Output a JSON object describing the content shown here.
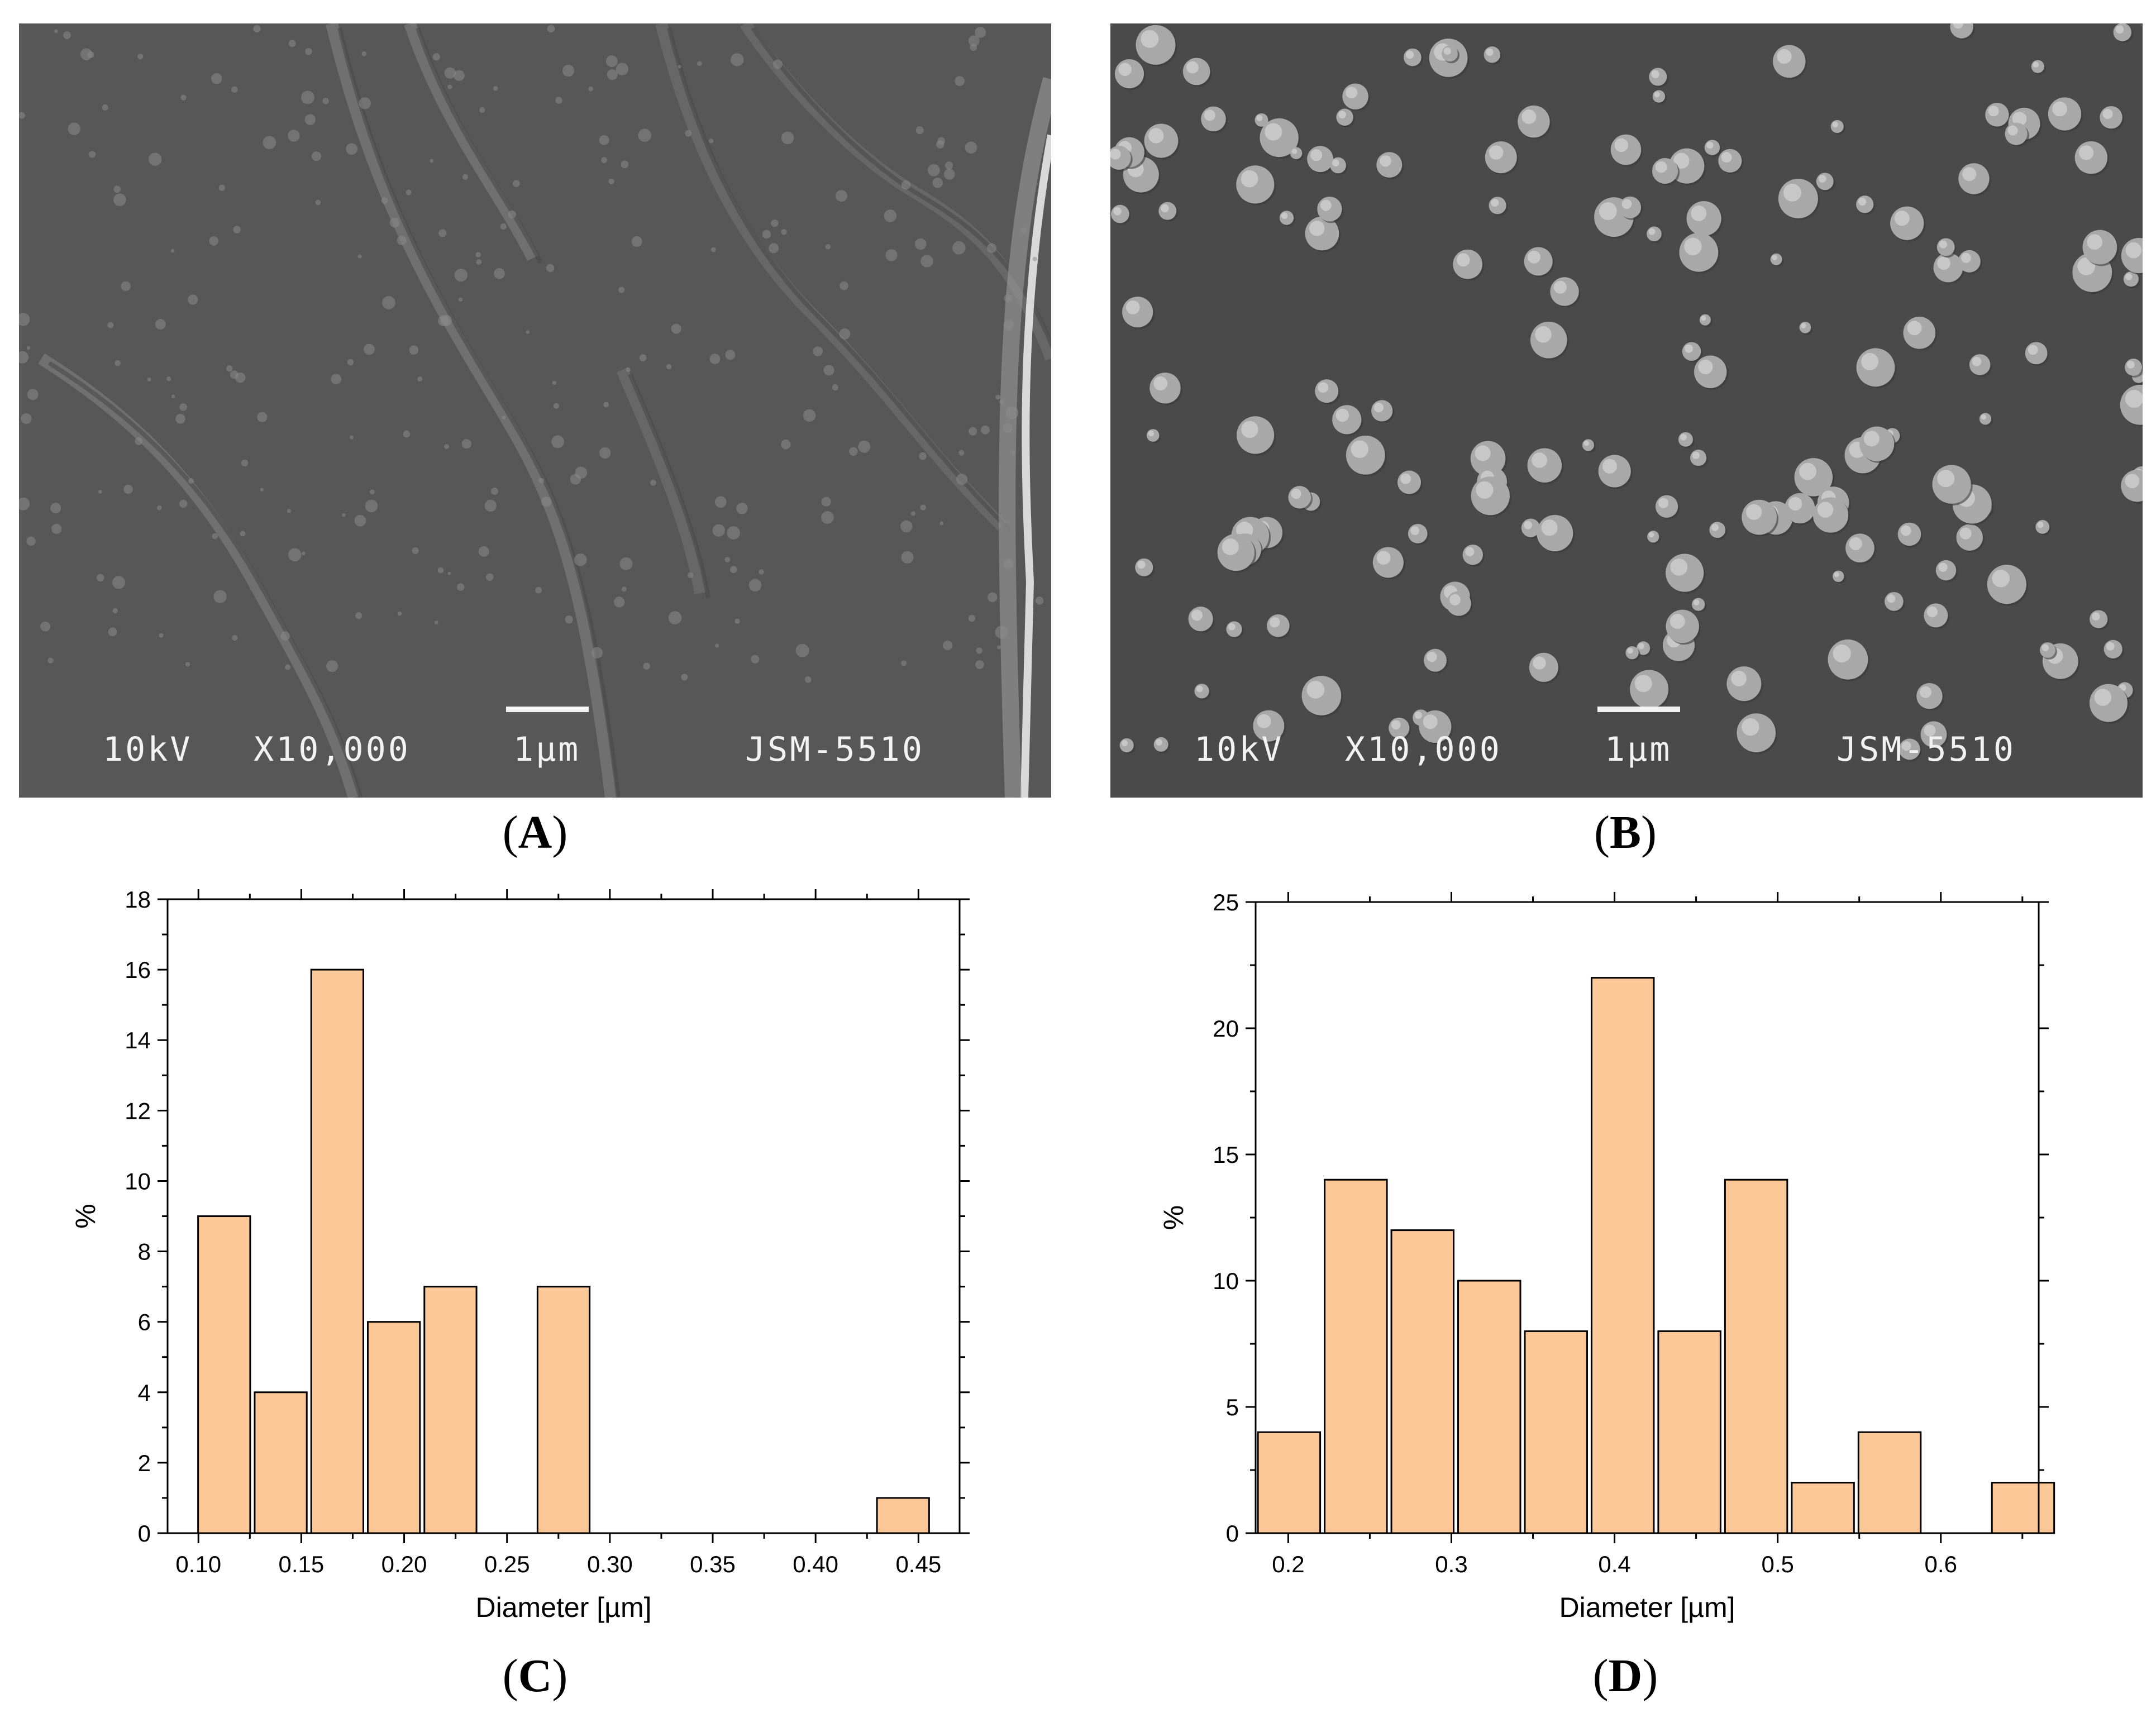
{
  "panels": {
    "A": {
      "caption": "A",
      "sem": {
        "voltage": "10kV",
        "magnification": "X10,000",
        "scale": "1µm",
        "instrument": "JSM-5510"
      },
      "style": "fracture-surface"
    },
    "B": {
      "caption": "B",
      "sem": {
        "voltage": "10kV",
        "magnification": "X10,000",
        "scale": "1µm",
        "instrument": "JSM-5510"
      },
      "style": "particles"
    },
    "C": {
      "caption": "C"
    },
    "D": {
      "caption": "D"
    }
  },
  "colors": {
    "bar_fill": "#fdc898",
    "bar_stroke": "#000000",
    "sem_bg_A": "#575757",
    "sem_bg_B": "#4a4a4a"
  },
  "chart_data": [
    {
      "id": "C",
      "type": "bar",
      "xlabel": "Diameter [µm]",
      "ylabel": "%",
      "xlim": [
        0.085,
        0.47
      ],
      "ylim": [
        0,
        18
      ],
      "xticks": [
        "0.10",
        "0.15",
        "0.20",
        "0.25",
        "0.30",
        "0.35",
        "0.40",
        "0.45"
      ],
      "xtick_values": [
        0.1,
        0.15,
        0.2,
        0.25,
        0.3,
        0.35,
        0.4,
        0.45
      ],
      "yticks": [
        "0",
        "2",
        "4",
        "6",
        "8",
        "10",
        "12",
        "14",
        "16",
        "18"
      ],
      "ytick_values": [
        0,
        2,
        4,
        6,
        8,
        10,
        12,
        14,
        16,
        18
      ],
      "bin_width": 0.0275,
      "bars": [
        {
          "x": 0.1125,
          "value": 9
        },
        {
          "x": 0.14,
          "value": 4
        },
        {
          "x": 0.1675,
          "value": 16
        },
        {
          "x": 0.195,
          "value": 6
        },
        {
          "x": 0.2225,
          "value": 7
        },
        {
          "x": 0.25,
          "value": 0
        },
        {
          "x": 0.2775,
          "value": 7
        },
        {
          "x": 0.305,
          "value": 0
        },
        {
          "x": 0.3325,
          "value": 0
        },
        {
          "x": 0.36,
          "value": 0
        },
        {
          "x": 0.3875,
          "value": 0
        },
        {
          "x": 0.415,
          "value": 0
        },
        {
          "x": 0.4425,
          "value": 1
        }
      ],
      "grid": false
    },
    {
      "id": "D",
      "type": "bar",
      "xlabel": "Diameter [µm]",
      "ylabel": "%",
      "xlim": [
        0.18,
        0.66
      ],
      "ylim": [
        0,
        25
      ],
      "xticks": [
        "0.2",
        "0.3",
        "0.4",
        "0.5",
        "0.6"
      ],
      "xtick_values": [
        0.2,
        0.3,
        0.4,
        0.5,
        0.6
      ],
      "yticks": [
        "0",
        "5",
        "10",
        "15",
        "20",
        "25"
      ],
      "ytick_values": [
        0,
        5,
        10,
        15,
        20,
        25
      ],
      "bin_width": 0.0409,
      "bars": [
        {
          "x": 0.2005,
          "value": 4
        },
        {
          "x": 0.2414,
          "value": 14
        },
        {
          "x": 0.2823,
          "value": 12
        },
        {
          "x": 0.3232,
          "value": 10
        },
        {
          "x": 0.3641,
          "value": 8
        },
        {
          "x": 0.405,
          "value": 22
        },
        {
          "x": 0.4459,
          "value": 8
        },
        {
          "x": 0.4868,
          "value": 14
        },
        {
          "x": 0.5277,
          "value": 2
        },
        {
          "x": 0.5686,
          "value": 4
        },
        {
          "x": 0.6095,
          "value": 0
        },
        {
          "x": 0.6504,
          "value": 2
        }
      ],
      "grid": false
    }
  ]
}
